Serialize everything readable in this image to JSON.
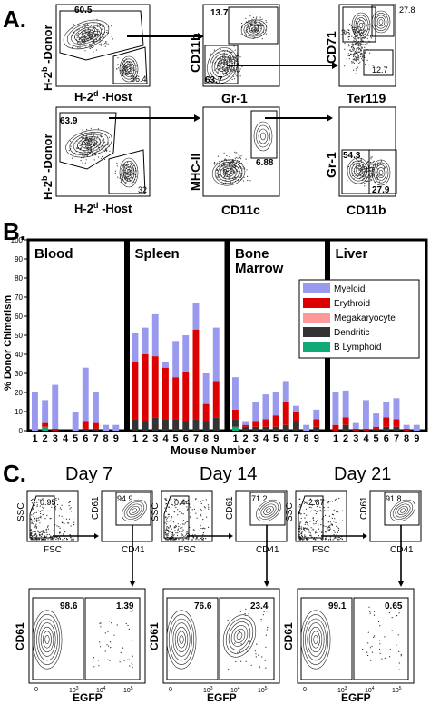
{
  "panel_a": {
    "letter": "A.",
    "row1": {
      "plot1": {
        "ylabel_main": "H-2",
        "ylabel_sup": "b",
        "ylabel_rest": " -Donor",
        "xlabel_main": "H-2",
        "xlabel_sup": "d",
        "xlabel_rest": " -Host",
        "gate_top": "60.5",
        "gate_bottom": "36.4"
      },
      "plot2": {
        "ylabel": "CD11b",
        "xlabel": "Gr-1",
        "gate_top": "13.7",
        "gate_bottom": "63.7"
      },
      "plot3": {
        "ylabel": "CD71",
        "xlabel": "Ter119",
        "gate_topleft": "36.7",
        "gate_topright": "27.8",
        "gate_bottom": "12.7"
      }
    },
    "row2": {
      "plot1": {
        "ylabel_main": "H-2",
        "ylabel_sup": "b",
        "ylabel_rest": " -Donor",
        "xlabel_main": "H-2",
        "xlabel_sup": "d",
        "xlabel_rest": " -Host",
        "gate_top": "63.9",
        "gate_bottom": "32"
      },
      "plot2": {
        "ylabel": "MHC-II",
        "xlabel": "CD11c",
        "gate": "6.88"
      },
      "plot3": {
        "ylabel": "Gr-1",
        "xlabel": "CD11b",
        "gate_left": "54.3",
        "gate_right": "27.9"
      }
    }
  },
  "panel_b": {
    "letter": "B.",
    "ylabel": "% Donor Chimerism",
    "xlabel": "Mouse Number",
    "colors": {
      "Myeloid": "#9999ee",
      "Erythroid": "#dd0000",
      "Megakaryocyte": "#ff9999",
      "Dendritic": "#333333",
      "B Lymphoid": "#11aa77"
    },
    "chart_data": {
      "type": "bar",
      "stacked": true,
      "ylabel": "% Donor Chimerism",
      "xlabel": "Mouse Number",
      "ylim": [
        0,
        100
      ],
      "yticks": [
        0,
        10,
        20,
        30,
        40,
        50,
        60,
        70,
        80,
        90,
        100
      ],
      "categories": [
        "1",
        "2",
        "3",
        "4",
        "5",
        "6",
        "7",
        "8",
        "9"
      ],
      "series_names": [
        "B Lymphoid",
        "Dendritic",
        "Megakaryocyte",
        "Erythroid",
        "Myeloid"
      ],
      "legend": [
        "Myeloid",
        "Erythroid",
        "Megakaryocyte",
        "Dendritic",
        "B Lymphoid"
      ],
      "groups": [
        {
          "name": "Blood",
          "bars": [
            {
              "x": "1",
              "values": [
                0,
                0,
                0,
                0,
                20
              ]
            },
            {
              "x": "2",
              "values": [
                2,
                0,
                0,
                2,
                12
              ]
            },
            {
              "x": "3",
              "values": [
                0,
                0,
                0,
                1,
                23
              ]
            },
            {
              "x": "4",
              "values": [
                0,
                0,
                0,
                0,
                0
              ]
            },
            {
              "x": "5",
              "values": [
                0,
                0,
                0,
                0,
                10
              ]
            },
            {
              "x": "6",
              "values": [
                0,
                1,
                0,
                4,
                28
              ]
            },
            {
              "x": "7",
              "values": [
                0,
                1,
                0,
                3,
                16
              ]
            },
            {
              "x": "8",
              "values": [
                0,
                0,
                0,
                0,
                3
              ]
            },
            {
              "x": "9",
              "values": [
                0,
                0,
                0,
                0,
                3
              ]
            }
          ]
        },
        {
          "name": "Spleen",
          "bars": [
            {
              "x": "1",
              "values": [
                0,
                6,
                0,
                30,
                15
              ]
            },
            {
              "x": "2",
              "values": [
                0,
                5,
                0,
                35,
                14
              ]
            },
            {
              "x": "3",
              "values": [
                0,
                7,
                0,
                32,
                22
              ]
            },
            {
              "x": "4",
              "values": [
                0,
                6,
                0,
                27,
                3
              ]
            },
            {
              "x": "5",
              "values": [
                0,
                6,
                0,
                22,
                19
              ]
            },
            {
              "x": "6",
              "values": [
                0,
                5,
                0,
                26,
                19
              ]
            },
            {
              "x": "7",
              "values": [
                0,
                6,
                0,
                47,
                14
              ]
            },
            {
              "x": "8",
              "values": [
                0,
                5,
                0,
                9,
                16
              ]
            },
            {
              "x": "9",
              "values": [
                0,
                7,
                0,
                19,
                28
              ]
            }
          ]
        },
        {
          "name": "Bone\nMarrow",
          "bars": [
            {
              "x": "1",
              "values": [
                2,
                4,
                0,
                5,
                17
              ]
            },
            {
              "x": "2",
              "values": [
                0,
                2,
                0,
                1,
                2
              ]
            },
            {
              "x": "3",
              "values": [
                0,
                2,
                0,
                3,
                10
              ]
            },
            {
              "x": "4",
              "values": [
                0,
                2,
                0,
                4,
                13
              ]
            },
            {
              "x": "5",
              "values": [
                0,
                2,
                0,
                6,
                12
              ]
            },
            {
              "x": "6",
              "values": [
                0,
                3,
                0,
                12,
                11
              ]
            },
            {
              "x": "7",
              "values": [
                0,
                5,
                0,
                5,
                3
              ]
            },
            {
              "x": "8",
              "values": [
                0,
                0,
                0,
                0,
                3
              ]
            },
            {
              "x": "9",
              "values": [
                0,
                2,
                0,
                4,
                5
              ]
            }
          ]
        },
        {
          "name": "Liver",
          "bars": [
            {
              "x": "1",
              "values": [
                0,
                0,
                0,
                3,
                17
              ]
            },
            {
              "x": "2",
              "values": [
                0,
                3,
                0,
                4,
                14
              ]
            },
            {
              "x": "3",
              "values": [
                0,
                0,
                0,
                1,
                3
              ]
            },
            {
              "x": "4",
              "values": [
                0,
                0,
                0,
                1,
                15
              ]
            },
            {
              "x": "5",
              "values": [
                0,
                1,
                0,
                1,
                7
              ]
            },
            {
              "x": "6",
              "values": [
                0,
                2,
                0,
                5,
                8
              ]
            },
            {
              "x": "7",
              "values": [
                0,
                2,
                0,
                4,
                11
              ]
            },
            {
              "x": "8",
              "values": [
                0,
                0,
                0,
                1,
                2
              ]
            },
            {
              "x": "9",
              "values": [
                0,
                0,
                0,
                0,
                3
              ]
            }
          ]
        }
      ]
    }
  },
  "panel_c": {
    "letter": "C.",
    "days": [
      {
        "title": "Day 7",
        "ssc": "SSC",
        "fsc": "FSC",
        "cd61": "CD61",
        "cd41": "CD41",
        "egfp": "EGFP",
        "g1": "0.95",
        "g2": "94.9",
        "left": "98.6",
        "right": "1.39"
      },
      {
        "title": "Day 14",
        "ssc": "SSC",
        "fsc": "FSC",
        "cd61": "CD61",
        "cd41": "CD41",
        "egfp": "EGFP",
        "g1": "0.44",
        "g2": "71.2",
        "left": "76.6",
        "right": "23.4"
      },
      {
        "title": "Day 21",
        "ssc": "SSC",
        "fsc": "FSC",
        "cd61": "CD61",
        "cd41": "CD41",
        "egfp": "EGFP",
        "g1": "2.87",
        "g2": "91.8",
        "left": "99.1",
        "right": "0.65"
      }
    ],
    "egfp_ticks": [
      "0",
      "10",
      "3",
      "10",
      "4",
      "10",
      "5"
    ]
  }
}
